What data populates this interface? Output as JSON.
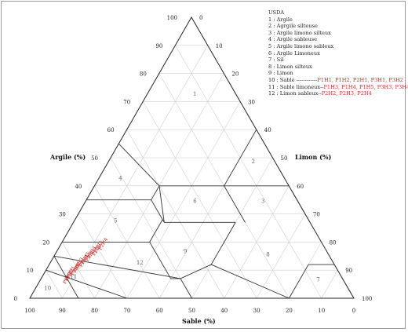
{
  "diagram": {
    "axes": {
      "left_label": "Argile (%)",
      "right_label": "Limon (%)",
      "bottom_label": "Sable (%)"
    },
    "ticks": {
      "left": [
        "0",
        "10",
        "20",
        "30",
        "40",
        "50",
        "60",
        "70",
        "80",
        "90",
        "100"
      ],
      "right": [
        "0",
        "10",
        "20",
        "30",
        "40",
        "50",
        "60",
        "70",
        "80",
        "90",
        "100"
      ],
      "bottom": [
        "100",
        "90",
        "80",
        "70",
        "60",
        "50",
        "40",
        "30",
        "20",
        "10",
        "0"
      ]
    },
    "regions": [
      "1",
      "2",
      "3",
      "4",
      "5",
      "6",
      "7",
      "8",
      "9",
      "10",
      "11",
      "12"
    ],
    "points": [
      "P1H1",
      "P1H2",
      "P2H1",
      "P3H1",
      "P3H2",
      "P1H3",
      "P1H4",
      "P1H5",
      "P3H3",
      "P3H4",
      "P2H2",
      "P2H3",
      "P2H4"
    ]
  },
  "legend": {
    "title": "USDA",
    "items": [
      {
        "text": "1 : Argile",
        "samples": ""
      },
      {
        "text": "2 : Agrgile silteuse",
        "samples": ""
      },
      {
        "text": "3 : Argile limono silteux",
        "samples": ""
      },
      {
        "text": "4 : Argile sableuse",
        "samples": ""
      },
      {
        "text": "5 : Argile limono sableux",
        "samples": ""
      },
      {
        "text": "6 : Argile Limoneux",
        "samples": ""
      },
      {
        "text": "7 : Sil",
        "samples": ""
      },
      {
        "text": "8 : Limon silteux",
        "samples": ""
      },
      {
        "text": "9 : Limon",
        "samples": ""
      },
      {
        "text": "10 : Sable ------------",
        "samples": "P1H1, P1H2, P2H1, P3H1, P3H2"
      },
      {
        "text": "11 : Sable limoneux--",
        "samples": "P1H3, P1H4, P1H5, P3H3, P3H4"
      },
      {
        "text": "12 : Limon sableux--",
        "samples": "P2H2, P2H3, P2H4"
      }
    ]
  }
}
